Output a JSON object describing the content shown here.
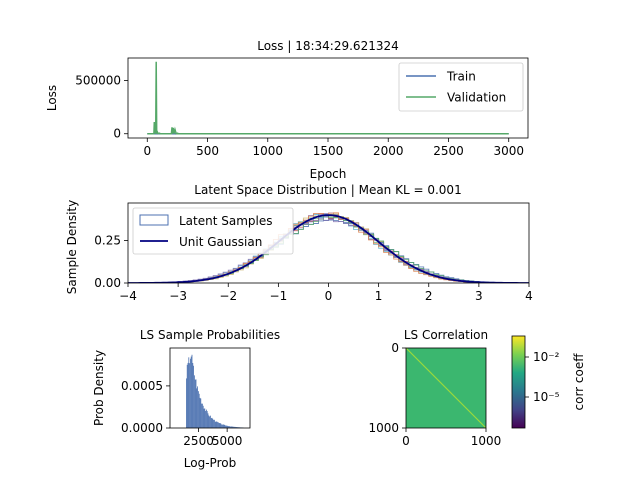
{
  "chart_data": [
    {
      "type": "line",
      "title": "Loss | 18:34:29.621324",
      "xlabel": "Epoch",
      "ylabel": "Loss",
      "xlim": [
        -160,
        3160
      ],
      "ylim": [
        -40000,
        710000
      ],
      "xticks": [
        0,
        500,
        1000,
        1500,
        2000,
        2500,
        3000
      ],
      "yticks": [
        0,
        500000
      ],
      "legend": "top-right",
      "series": [
        {
          "name": "Train",
          "color": "#4c72b0",
          "x": [
            0,
            3000
          ],
          "y": [
            0,
            0
          ]
        },
        {
          "name": "Validation",
          "color": "#55a868",
          "x": [
            0,
            55,
            58,
            62,
            66,
            70,
            74,
            78,
            82,
            90,
            100,
            110,
            200,
            205,
            210,
            215,
            222,
            230,
            240,
            250,
            260,
            3000
          ],
          "y": [
            0,
            0,
            110000,
            10000,
            30000,
            0,
            675000,
            0,
            20000,
            0,
            5000,
            0,
            0,
            60000,
            0,
            55000,
            0,
            40000,
            0,
            5000,
            0,
            0
          ]
        }
      ]
    },
    {
      "type": "area",
      "title": "Latent Space Distribution | Mean KL = 0.001",
      "xlabel": "",
      "ylabel": "Sample Density",
      "xlim": [
        -4,
        4
      ],
      "ylim": [
        0,
        0.47
      ],
      "xticks": [
        -4,
        -3,
        -2,
        -1,
        0,
        1,
        2,
        3,
        4
      ],
      "yticks": [
        0,
        0.25
      ],
      "ytick_labels": [
        "0.00",
        "0.25"
      ],
      "legend": "top-left",
      "series": [
        {
          "name": "Latent Samples",
          "style": "step-histograms",
          "color": "#4c72b0"
        },
        {
          "name": "Unit Gaussian",
          "color": "#000080",
          "mean": 0,
          "std": 1
        }
      ]
    },
    {
      "type": "bar",
      "title": "LS Sample Probabilities",
      "xlabel": "Log-Prob",
      "ylabel": "Prob Density",
      "xlim": [
        0,
        7000
      ],
      "ylim": [
        0,
        0.00095
      ],
      "xticks": [
        2500,
        5000
      ],
      "yticks": [
        0,
        0.0005
      ],
      "ytick_labels": [
        "0.0000",
        "0.0005"
      ],
      "color": "#4c72b0",
      "peak_x": 1800,
      "peak_density": 0.0009
    },
    {
      "type": "heatmap",
      "title": "LS Correlation",
      "xlim": [
        0,
        1000
      ],
      "ylim": [
        1000,
        0
      ],
      "xticks": [
        0,
        1000
      ],
      "yticks": [
        0,
        1000
      ],
      "fill_color": "#3bb76f",
      "diagonal_color": "#9bd93c",
      "colorbar": {
        "label": "corr coeff",
        "scale": "log",
        "tick_labels": [
          "10⁻²",
          "10⁻⁵"
        ],
        "colors": [
          "#fde725",
          "#7ad151",
          "#22a884",
          "#2a788e",
          "#414487",
          "#440154"
        ]
      }
    }
  ]
}
